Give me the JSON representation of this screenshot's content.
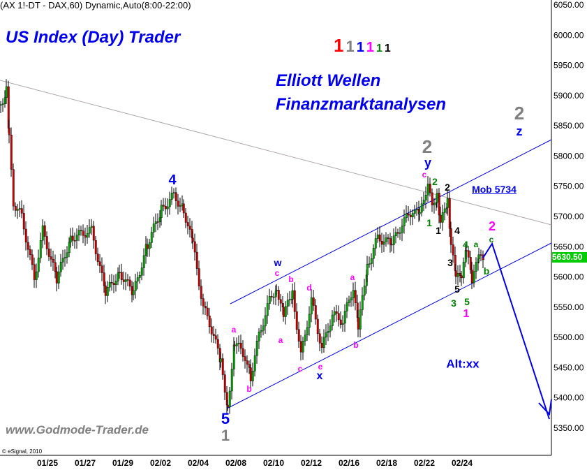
{
  "header": "(AX 1!-DT - DAX,60) Dynamic,Auto(8:00-22:00)",
  "brand_title": "US Index (Day) Trader",
  "subtitle_line1": "Elliott Wellen",
  "subtitle_line2": "Finanzmarktanalysen",
  "website": "www.Godmode-Trader.de",
  "copyright": "© eSignal, 2010",
  "degree_legend": [
    {
      "text": "1",
      "color": "#ff0000"
    },
    {
      "text": "1",
      "color": "#808080"
    },
    {
      "text": "1",
      "color": "#0000ee"
    },
    {
      "text": "1",
      "color": "#ff00ff"
    },
    {
      "text": "1",
      "color": "#008000"
    },
    {
      "text": "1",
      "color": "#000000"
    }
  ],
  "annotations": [
    {
      "text": "4",
      "color": "#0000ee"
    },
    {
      "text": "5",
      "color": "#0000ee"
    },
    {
      "text": "1",
      "color": "#808080"
    },
    {
      "text": "a",
      "color": "#ff00ff"
    },
    {
      "text": "b",
      "color": "#ff00ff"
    },
    {
      "text": "w",
      "color": "#0000ee"
    },
    {
      "text": "c",
      "color": "#ff00ff"
    },
    {
      "text": "b",
      "color": "#ff00ff"
    },
    {
      "text": "a",
      "color": "#ff00ff"
    },
    {
      "text": "d",
      "color": "#ff00ff"
    },
    {
      "text": "c",
      "color": "#ff00ff"
    },
    {
      "text": "e",
      "color": "#ff00ff"
    },
    {
      "text": "x",
      "color": "#0000ee"
    },
    {
      "text": "a",
      "color": "#ff00ff"
    },
    {
      "text": "b",
      "color": "#ff00ff"
    },
    {
      "text": "2",
      "color": "#808080"
    },
    {
      "text": "y",
      "color": "#0000ee"
    },
    {
      "text": "c",
      "color": "#ff00ff"
    },
    {
      "text": "2",
      "color": "#008000"
    },
    {
      "text": "1",
      "color": "#008000"
    },
    {
      "text": "2",
      "color": "#000000"
    },
    {
      "text": "1",
      "color": "#000000"
    },
    {
      "text": "4",
      "color": "#000000"
    },
    {
      "text": "3",
      "color": "#000000"
    },
    {
      "text": "5",
      "color": "#000000"
    },
    {
      "text": "3",
      "color": "#008000"
    },
    {
      "text": "5",
      "color": "#008000"
    },
    {
      "text": "4",
      "color": "#008000"
    },
    {
      "text": "a",
      "color": "#008000"
    },
    {
      "text": "1",
      "color": "#ff00ff"
    },
    {
      "text": "2",
      "color": "#ff00ff"
    },
    {
      "text": "c",
      "color": "#008000"
    },
    {
      "text": "b",
      "color": "#008000"
    },
    {
      "text": "2",
      "color": "#808080"
    },
    {
      "text": "z",
      "color": "#0000ee"
    },
    {
      "text": "Alt:xx",
      "color": "#0000ee"
    }
  ],
  "mob_label": "Mob 5734",
  "chart_data": {
    "type": "candlestick",
    "symbol": "DAX",
    "interval": "60",
    "ylim": [
      5310,
      6060
    ],
    "y_ticks": [
      "6050.00",
      "6000.00",
      "5950.00",
      "5900.00",
      "5850.00",
      "5800.00",
      "5750.00",
      "5700.00",
      "5650.00",
      "5600.00",
      "5550.00",
      "5500.00",
      "5450.00",
      "5400.00",
      "5350.00"
    ],
    "x_ticks": [
      "01/25",
      "01/27",
      "01/29",
      "02/02",
      "02/04",
      "02/08",
      "02/10",
      "02/12",
      "02/16",
      "02/18",
      "02/22",
      "02/24"
    ],
    "last_price": "5630.50",
    "last_price_color": "#00cc00",
    "approx_closes": [
      5885,
      5908,
      5827,
      5723,
      5700,
      5596,
      5677,
      5596,
      5665,
      5677,
      5573,
      5608,
      5573,
      5654,
      5711,
      5735,
      5711,
      5654,
      5550,
      5504,
      5457,
      5388,
      5492,
      5469,
      5434,
      5504,
      5561,
      5584,
      5538,
      5573,
      5469,
      5561,
      5481,
      5538,
      5527,
      5584,
      5515,
      5619,
      5665,
      5654,
      5688,
      5711,
      5700,
      5758,
      5711,
      5734,
      5688,
      5723,
      5654,
      5596,
      5602,
      5642,
      5596,
      5630,
      5630.5
    ],
    "channel_color": "#0000ee",
    "trendline_color": "#b0a8a8",
    "projection": {
      "from": 5630.5,
      "peak": 5655,
      "target": 5365
    }
  }
}
